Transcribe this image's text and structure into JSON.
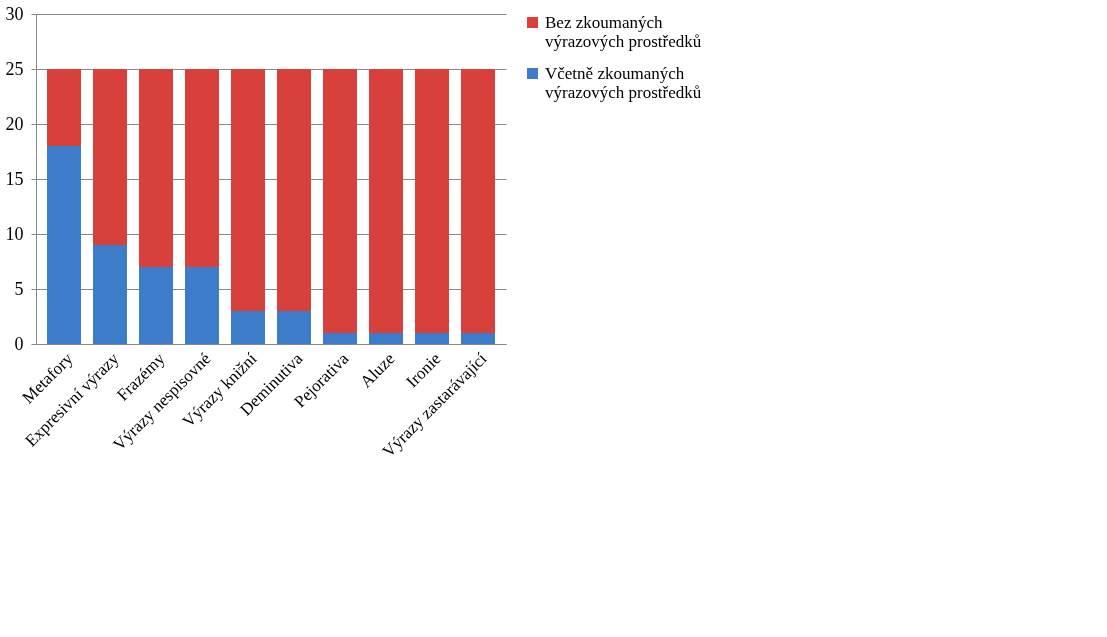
{
  "chart_data": {
    "type": "bar",
    "stacked": true,
    "categories": [
      "Metafory",
      "Expresivní výrazy",
      "Frazémy",
      "Výrazy nespisovné",
      "Výrazy knižní",
      "Deminutiva",
      "Pejorativa",
      "Aluze",
      "Ironie",
      "Výrazy zastarávající"
    ],
    "series": [
      {
        "name": "Včetně zkoumaných výrazových prostředků",
        "color": "#3d7cc9",
        "values": [
          18,
          9,
          7,
          7,
          3,
          3,
          1,
          1,
          1,
          1
        ]
      },
      {
        "name": "Bez zkoumaných výrazových prostředků",
        "color": "#d8403b",
        "values": [
          7,
          16,
          18,
          18,
          22,
          22,
          24,
          24,
          24,
          24
        ]
      }
    ],
    "ylim": [
      0,
      30
    ],
    "yticks": [
      0,
      5,
      10,
      15,
      20,
      25,
      30
    ],
    "grid": "y",
    "legend": "right"
  }
}
